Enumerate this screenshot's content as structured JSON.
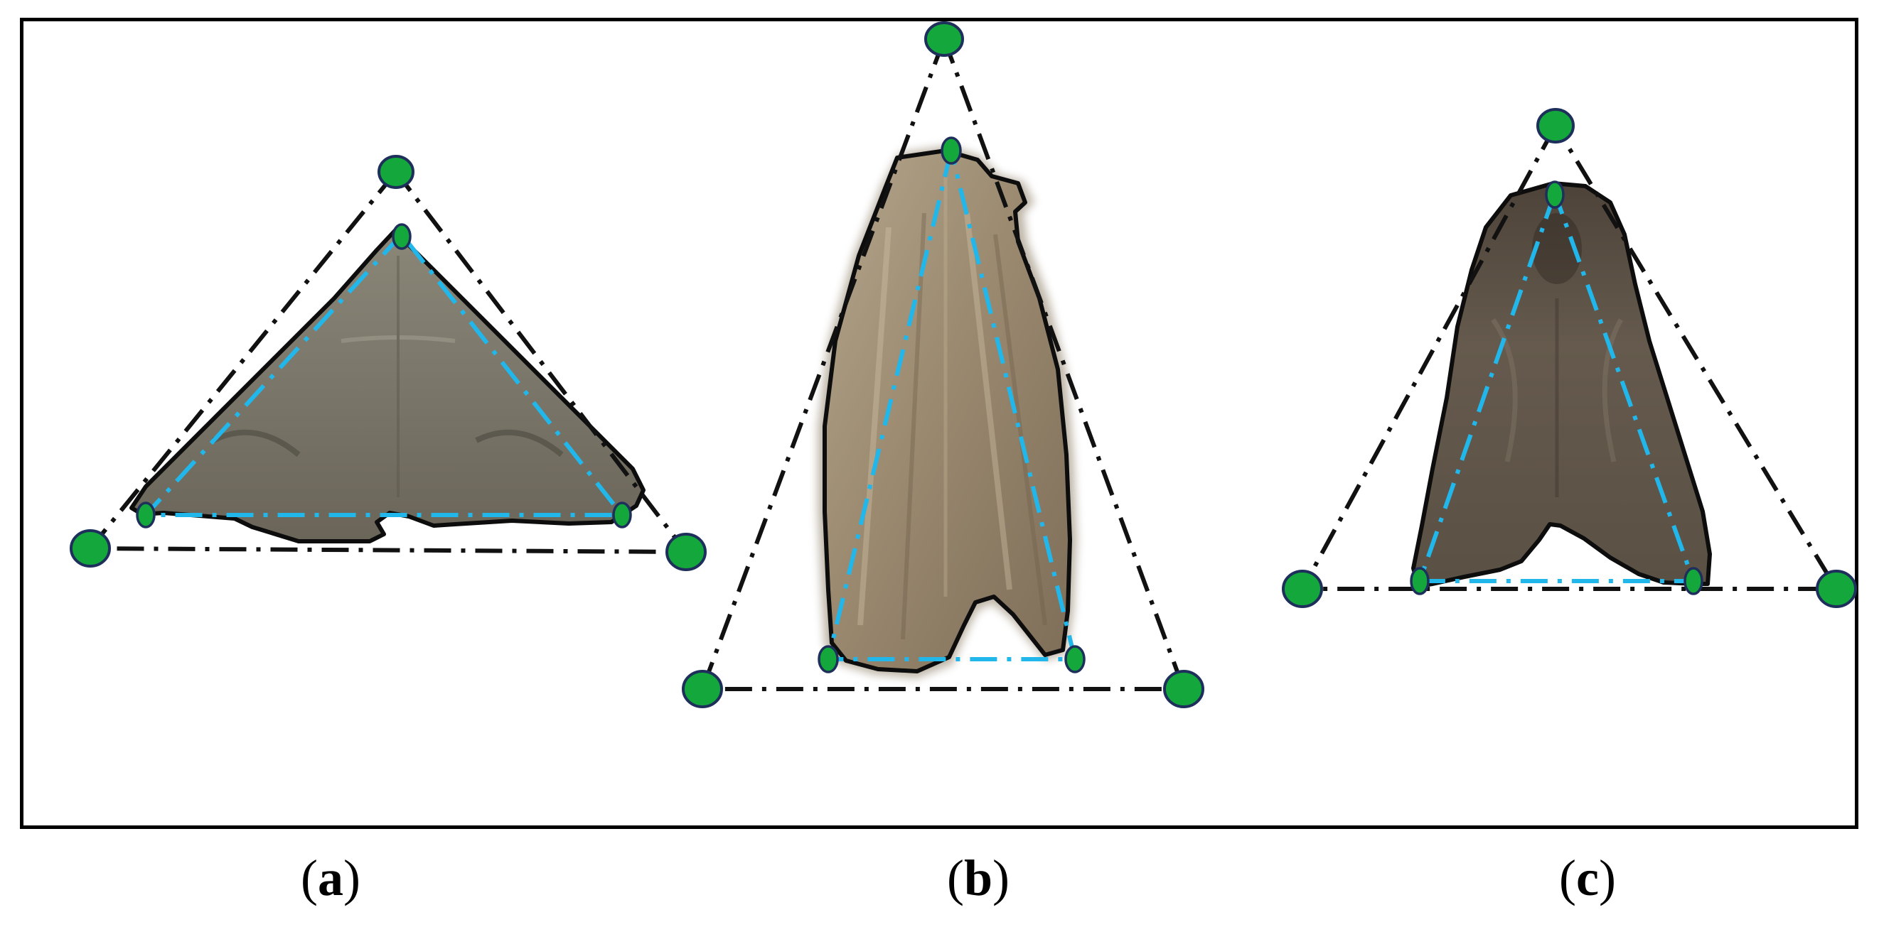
{
  "panels": [
    {
      "id": "a",
      "open": "(",
      "letter": "a",
      "close": ")"
    },
    {
      "id": "b",
      "open": "(",
      "letter": "b",
      "close": ")"
    },
    {
      "id": "c",
      "open": "(",
      "letter": "c",
      "close": ")"
    }
  ],
  "colors": {
    "frame": "#000000",
    "outer_triangle": "#111111",
    "inner_triangle": "#22b7ea",
    "marker_fill": "#14a83c",
    "marker_stroke": "#1d2f5a",
    "moth_wing_a": "#7d7a6c",
    "moth_wing_b": "#9c8a72",
    "moth_wing_c": "#5e5448"
  }
}
